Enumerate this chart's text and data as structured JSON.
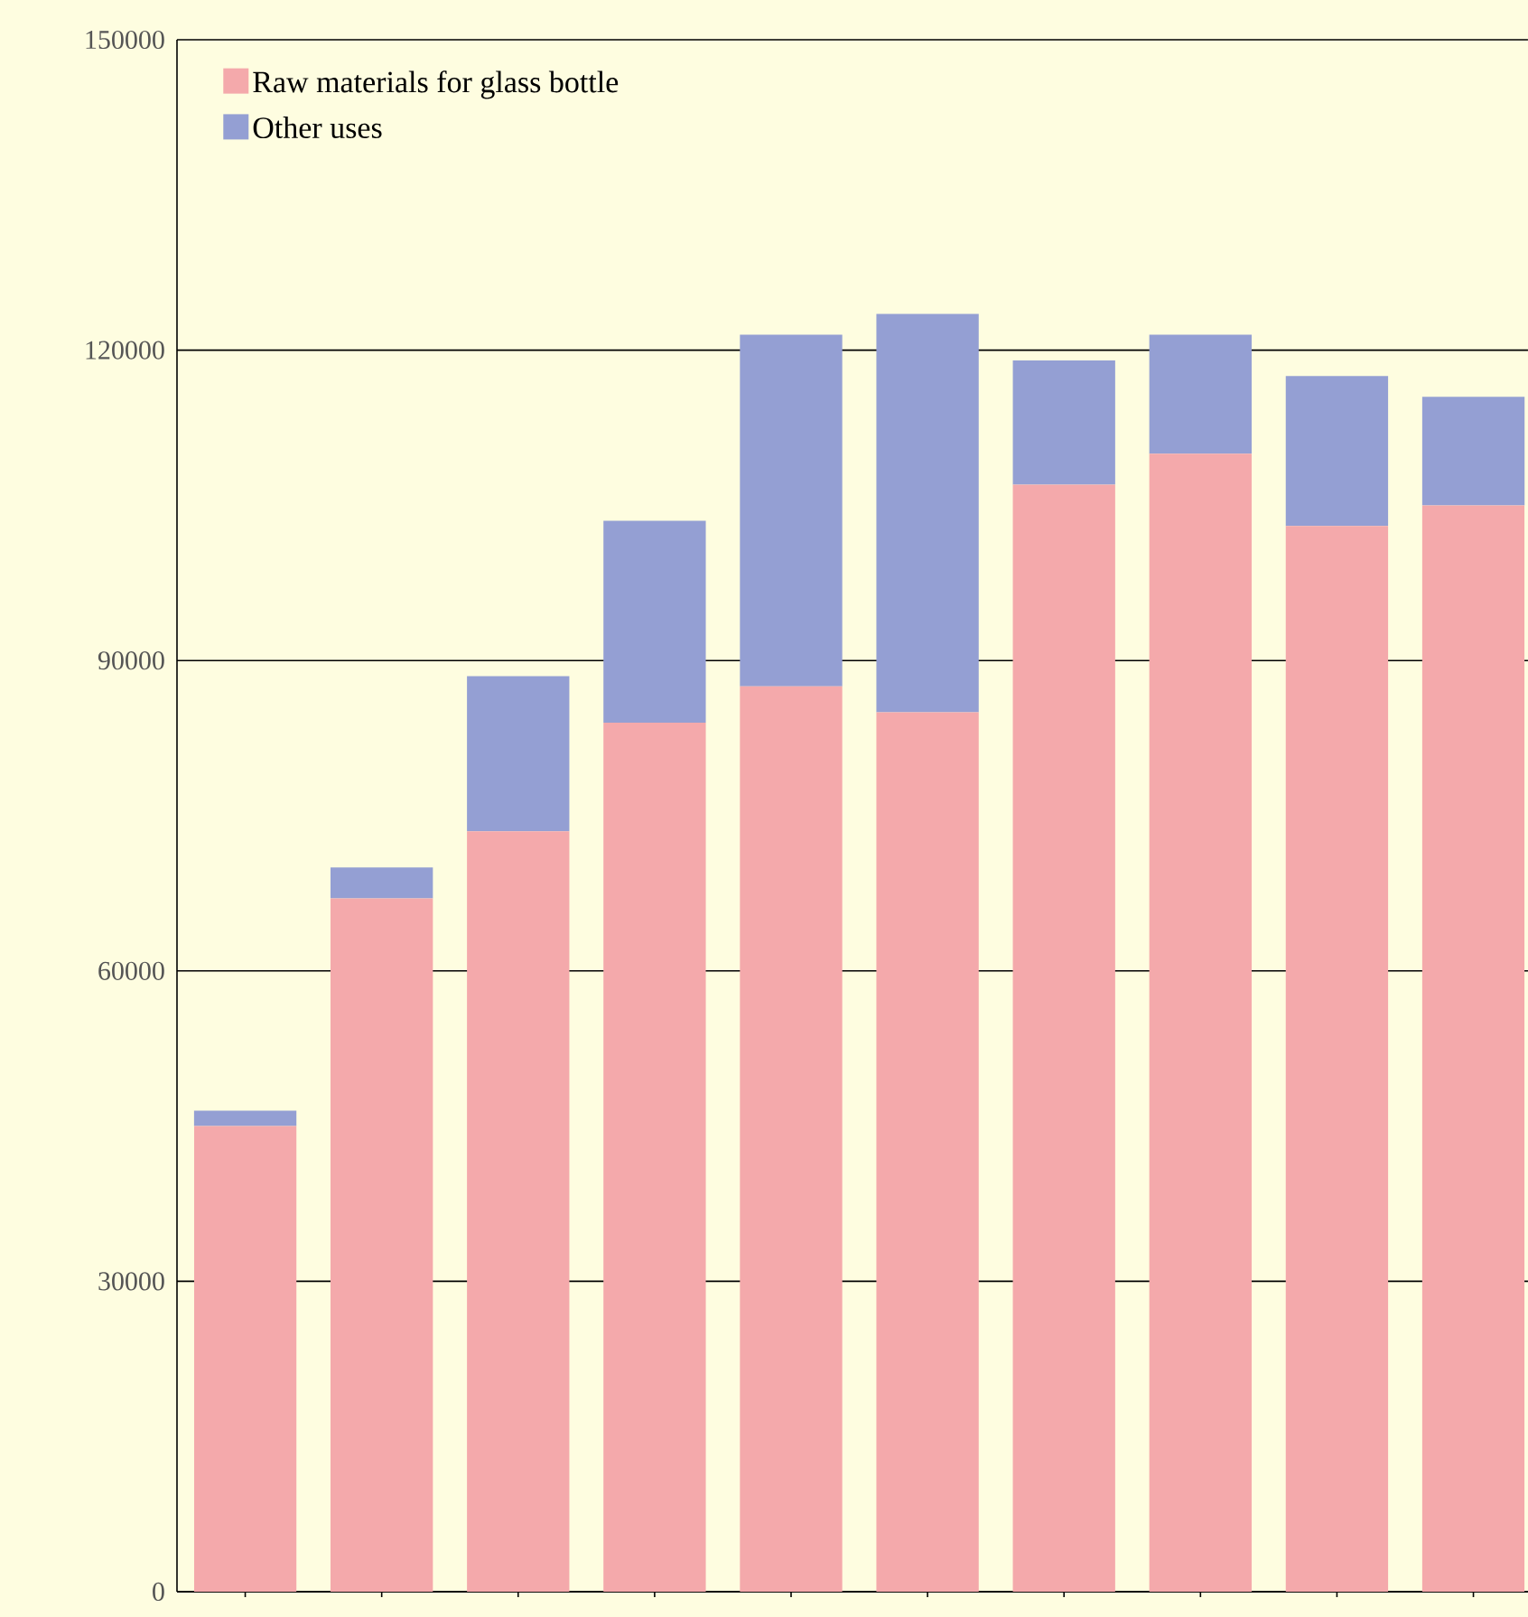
{
  "chart_data": {
    "type": "bar",
    "stacked": true,
    "categories": [
      null,
      null,
      null,
      null,
      null,
      null,
      null,
      null,
      null,
      null
    ],
    "series": [
      {
        "name": "Raw materials for glass bottle",
        "color": "#f4a9ab",
        "values": [
          45000,
          67000,
          73500,
          84000,
          87500,
          85000,
          107000,
          110000,
          103000,
          105000
        ]
      },
      {
        "name": "Other uses",
        "color": "#949fd3",
        "values": [
          1500,
          3000,
          15000,
          19500,
          34000,
          38500,
          12000,
          11500,
          14500,
          10500
        ]
      }
    ],
    "ylim": [
      0,
      150000
    ],
    "yticks": [
      0,
      30000,
      60000,
      90000,
      120000,
      150000
    ],
    "grid": "y",
    "legend": "top left"
  }
}
